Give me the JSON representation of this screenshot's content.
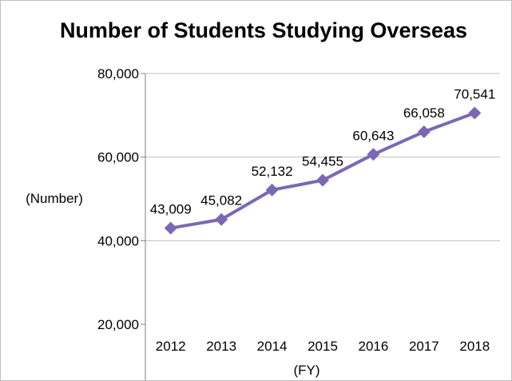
{
  "chart_data": {
    "type": "line",
    "title": "Number of Students Studying Overseas",
    "xlabel": "(FY)",
    "ylabel": "(Number)",
    "categories": [
      "2012",
      "2013",
      "2014",
      "2015",
      "2016",
      "2017",
      "2018"
    ],
    "series": [
      {
        "values": [
          43009,
          45082,
          52132,
          54455,
          60643,
          66058,
          70541
        ],
        "data_labels": [
          "43,009",
          "45,082",
          "52,132",
          "54,455",
          "60,643",
          "66,058",
          "70,541"
        ],
        "color": "#7b68b5",
        "marker": "diamond"
      }
    ],
    "ylim": [
      20000,
      80000
    ],
    "yticks": [
      20000,
      40000,
      60000,
      80000
    ],
    "ytick_labels": [
      "20,000",
      "40,000",
      "60,000",
      "80,000"
    ],
    "grid": true,
    "gridline_color": "#c0c0c0",
    "border_color": "#bfbfbf",
    "legend": "none"
  }
}
